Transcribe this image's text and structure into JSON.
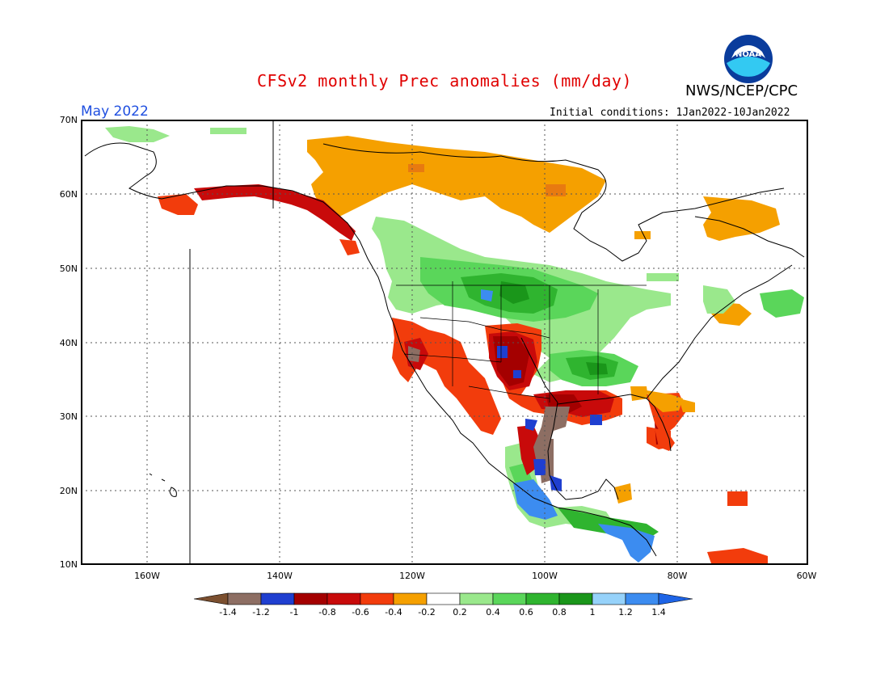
{
  "title": "CFSv2 monthly Prec anomalies (mm/day)",
  "org": "NWS/NCEP/CPC",
  "logo_text": "NOAA",
  "valid_month": "May 2022",
  "initial_conditions": "Initial conditions: 1Jan2022-10Jan2022",
  "lat_labels": [
    "70N",
    "60N",
    "50N",
    "40N",
    "30N",
    "20N",
    "10N"
  ],
  "lon_labels": [
    "160W",
    "140W",
    "120W",
    "100W",
    "80W",
    "60W"
  ],
  "colorbar": {
    "labels": [
      "-1.4",
      "-1.2",
      "-1",
      "-0.8",
      "-0.6",
      "-0.4",
      "-0.2",
      "0.2",
      "0.4",
      "0.6",
      "0.8",
      "1",
      "1.2",
      "1.4"
    ],
    "colors": [
      "#7b4f2f",
      "#8d6e63",
      "#1f3fd0",
      "#a40000",
      "#c80a0a",
      "#f23c0c",
      "#f5a000",
      "#ffffff",
      "#9ae88c",
      "#5ad65a",
      "#2fb42f",
      "#1a961a",
      "#96d2fa",
      "#3c8cf0",
      "#1e64e6"
    ]
  },
  "colors": {
    "title": "#e00000",
    "month": "#1f4fe0"
  }
}
